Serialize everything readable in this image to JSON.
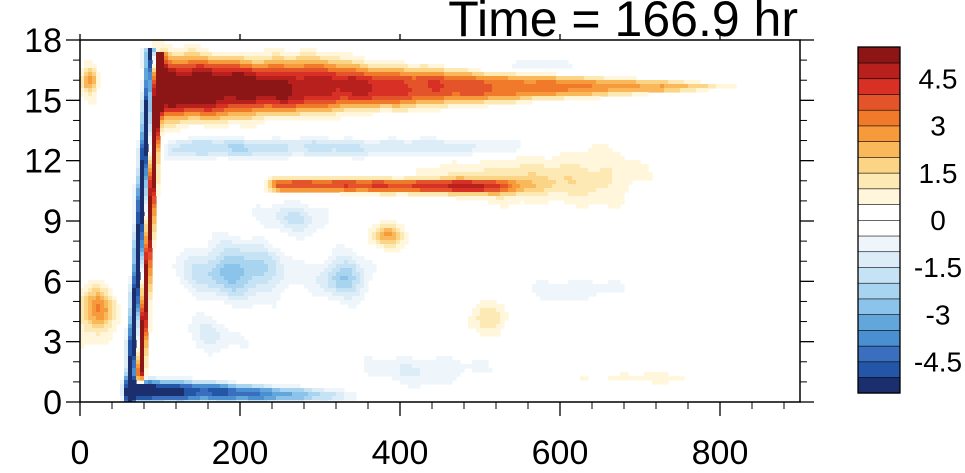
{
  "chart_data": {
    "type": "heatmap",
    "title": "Time = 166.9 hr",
    "xlabel": "",
    "ylabel": "",
    "xlim": [
      0,
      900
    ],
    "ylim": [
      0,
      18
    ],
    "x_ticks": [
      0,
      200,
      400,
      600,
      800
    ],
    "y_ticks": [
      0,
      3,
      6,
      9,
      12,
      15,
      18
    ],
    "x_tick_labels": [
      "0",
      "200",
      "400",
      "600",
      "800"
    ],
    "y_tick_labels": [
      "0",
      "3",
      "6",
      "9",
      "12",
      "15",
      "18"
    ],
    "colorbar": {
      "levels": [
        -5.5,
        -5,
        -4.5,
        -4,
        -3.5,
        -3,
        -2.5,
        -2,
        -1.5,
        -1,
        -0.5,
        0,
        0.5,
        1,
        1.5,
        2,
        2.5,
        3,
        3.5,
        4,
        4.5,
        5,
        5.5
      ],
      "colors": [
        "#1b2f6e",
        "#2456a8",
        "#3a6fc0",
        "#4a8fd0",
        "#63a6dc",
        "#8cc3ea",
        "#a9d4f0",
        "#c5e3f5",
        "#dcedf8",
        "#eef6fb",
        "#ffffff",
        "#ffffff",
        "#fff6dc",
        "#fde9b4",
        "#fbd486",
        "#f9b85a",
        "#f79a3c",
        "#f07a2a",
        "#e4542a",
        "#d83024",
        "#b8201e",
        "#8c1616"
      ],
      "tick_values": [
        4.5,
        3,
        1.5,
        0,
        -1.5,
        -3,
        -4.5
      ],
      "tick_labels": [
        "4.5",
        "3",
        "1.5",
        "0",
        "-1.5",
        "-3",
        "-4.5"
      ]
    },
    "features": [
      {
        "shape": "band",
        "x0": 90,
        "x1": 800,
        "y_center_start": 15.6,
        "y_center_end": 15.7,
        "half_width_start": 1.6,
        "half_width_end": 0.15,
        "value_start": 6,
        "value_end": 2.0
      },
      {
        "shape": "band",
        "x0": 110,
        "x1": 560,
        "y_center_start": 12.6,
        "y_center_end": 12.7,
        "half_width_start": 0.5,
        "half_width_end": 0.4,
        "value_start": -2.0,
        "value_end": -1.0
      },
      {
        "shape": "band",
        "x0": 240,
        "x1": 540,
        "y_center_start": 10.8,
        "y_center_end": 10.7,
        "half_width_start": 0.35,
        "half_width_end": 0.35,
        "value_start": 4.0,
        "value_end": 3.5
      },
      {
        "shape": "band",
        "x0": 60,
        "x1": 320,
        "y_center_start": 0.6,
        "y_center_end": 0.3,
        "half_width_start": 0.6,
        "half_width_end": 0.3,
        "value_start": -6,
        "value_end": -2.5
      },
      {
        "shape": "streak",
        "x_top": 88,
        "x_bottom": 62,
        "y_top": 17.3,
        "y_bottom": 0.3,
        "width": 12,
        "value": -6
      },
      {
        "shape": "streak",
        "x_top": 100,
        "x_bottom": 75,
        "y_top": 17.0,
        "y_bottom": 1.2,
        "width": 10,
        "value": 6
      },
      {
        "shape": "blob",
        "x": 520,
        "y": 11.0,
        "rx": 90,
        "ry": 1.0,
        "value": 1.5
      },
      {
        "shape": "blob",
        "x": 640,
        "y": 11.2,
        "rx": 70,
        "ry": 1.6,
        "value": 1.0
      },
      {
        "shape": "blob",
        "x": 385,
        "y": 8.3,
        "rx": 20,
        "ry": 0.6,
        "value": 2.5
      },
      {
        "shape": "blob",
        "x": 20,
        "y": 4.5,
        "rx": 22,
        "ry": 1.2,
        "value": 3.0
      },
      {
        "shape": "blob",
        "x": 12,
        "y": 16.0,
        "rx": 10,
        "ry": 0.6,
        "value": 3.0
      },
      {
        "shape": "blob",
        "x": 195,
        "y": 6.5,
        "rx": 60,
        "ry": 1.3,
        "value": -2.8
      },
      {
        "shape": "blob",
        "x": 330,
        "y": 6.2,
        "rx": 30,
        "ry": 1.0,
        "value": -2.5
      },
      {
        "shape": "blob",
        "x": 270,
        "y": 9.2,
        "rx": 40,
        "ry": 0.8,
        "value": -1.5
      },
      {
        "shape": "blob",
        "x": 430,
        "y": 1.6,
        "rx": 80,
        "ry": 0.8,
        "value": -1.0
      },
      {
        "shape": "blob",
        "x": 510,
        "y": 4.2,
        "rx": 25,
        "ry": 0.8,
        "value": 1.5
      },
      {
        "shape": "blob",
        "x": 620,
        "y": 5.6,
        "rx": 70,
        "ry": 0.7,
        "value": -0.8
      },
      {
        "shape": "blob",
        "x": 300,
        "y": 17.0,
        "rx": 60,
        "ry": 0.6,
        "value": 0.8
      },
      {
        "shape": "blob",
        "x": 560,
        "y": 16.7,
        "rx": 60,
        "ry": 0.5,
        "value": -0.8
      },
      {
        "shape": "blob",
        "x": 700,
        "y": 1.2,
        "rx": 80,
        "ry": 0.3,
        "value": 0.8
      },
      {
        "shape": "blob",
        "x": 160,
        "y": 3.2,
        "rx": 40,
        "ry": 1.0,
        "value": -1.0
      }
    ]
  }
}
